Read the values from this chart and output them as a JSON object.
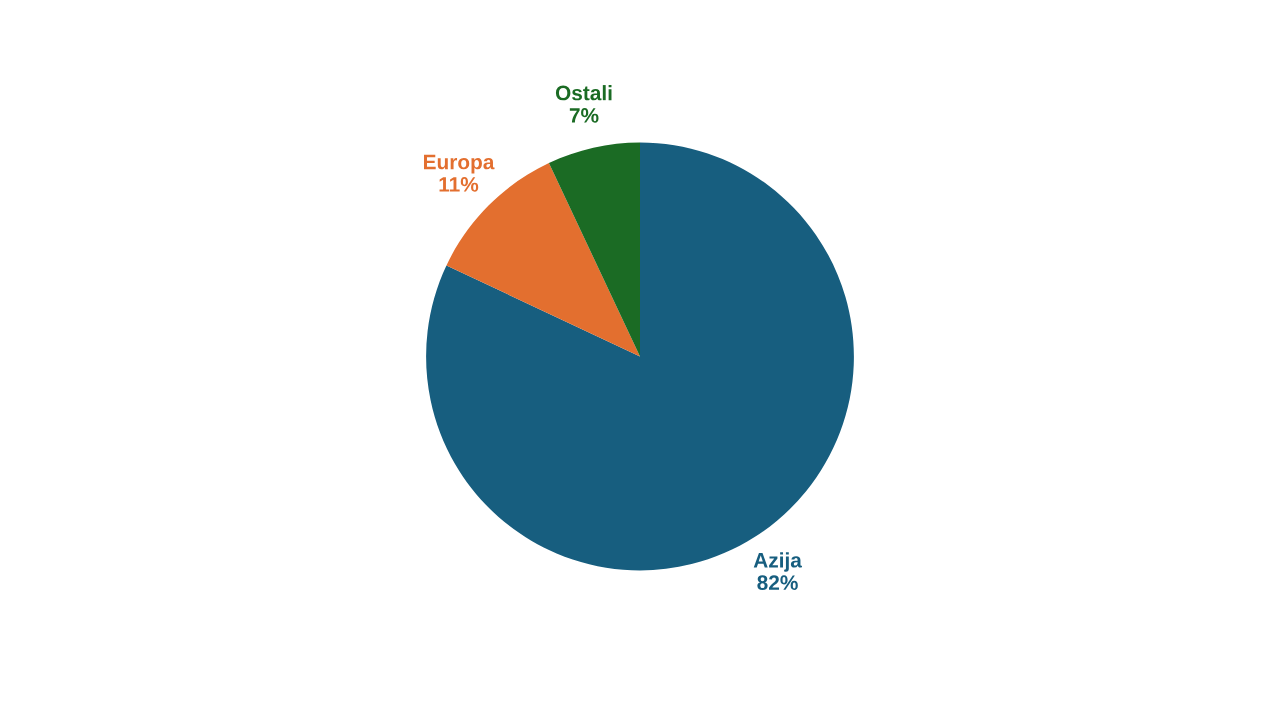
{
  "chart_data": {
    "type": "pie",
    "categories": [
      "Azija",
      "Europa",
      "Ostali"
    ],
    "values": [
      82,
      11,
      7
    ],
    "value_labels": [
      "82%",
      "11%",
      "7%"
    ],
    "colors": [
      "#175e7f",
      "#e36f2f",
      "#1b6b24"
    ],
    "legend": false
  }
}
